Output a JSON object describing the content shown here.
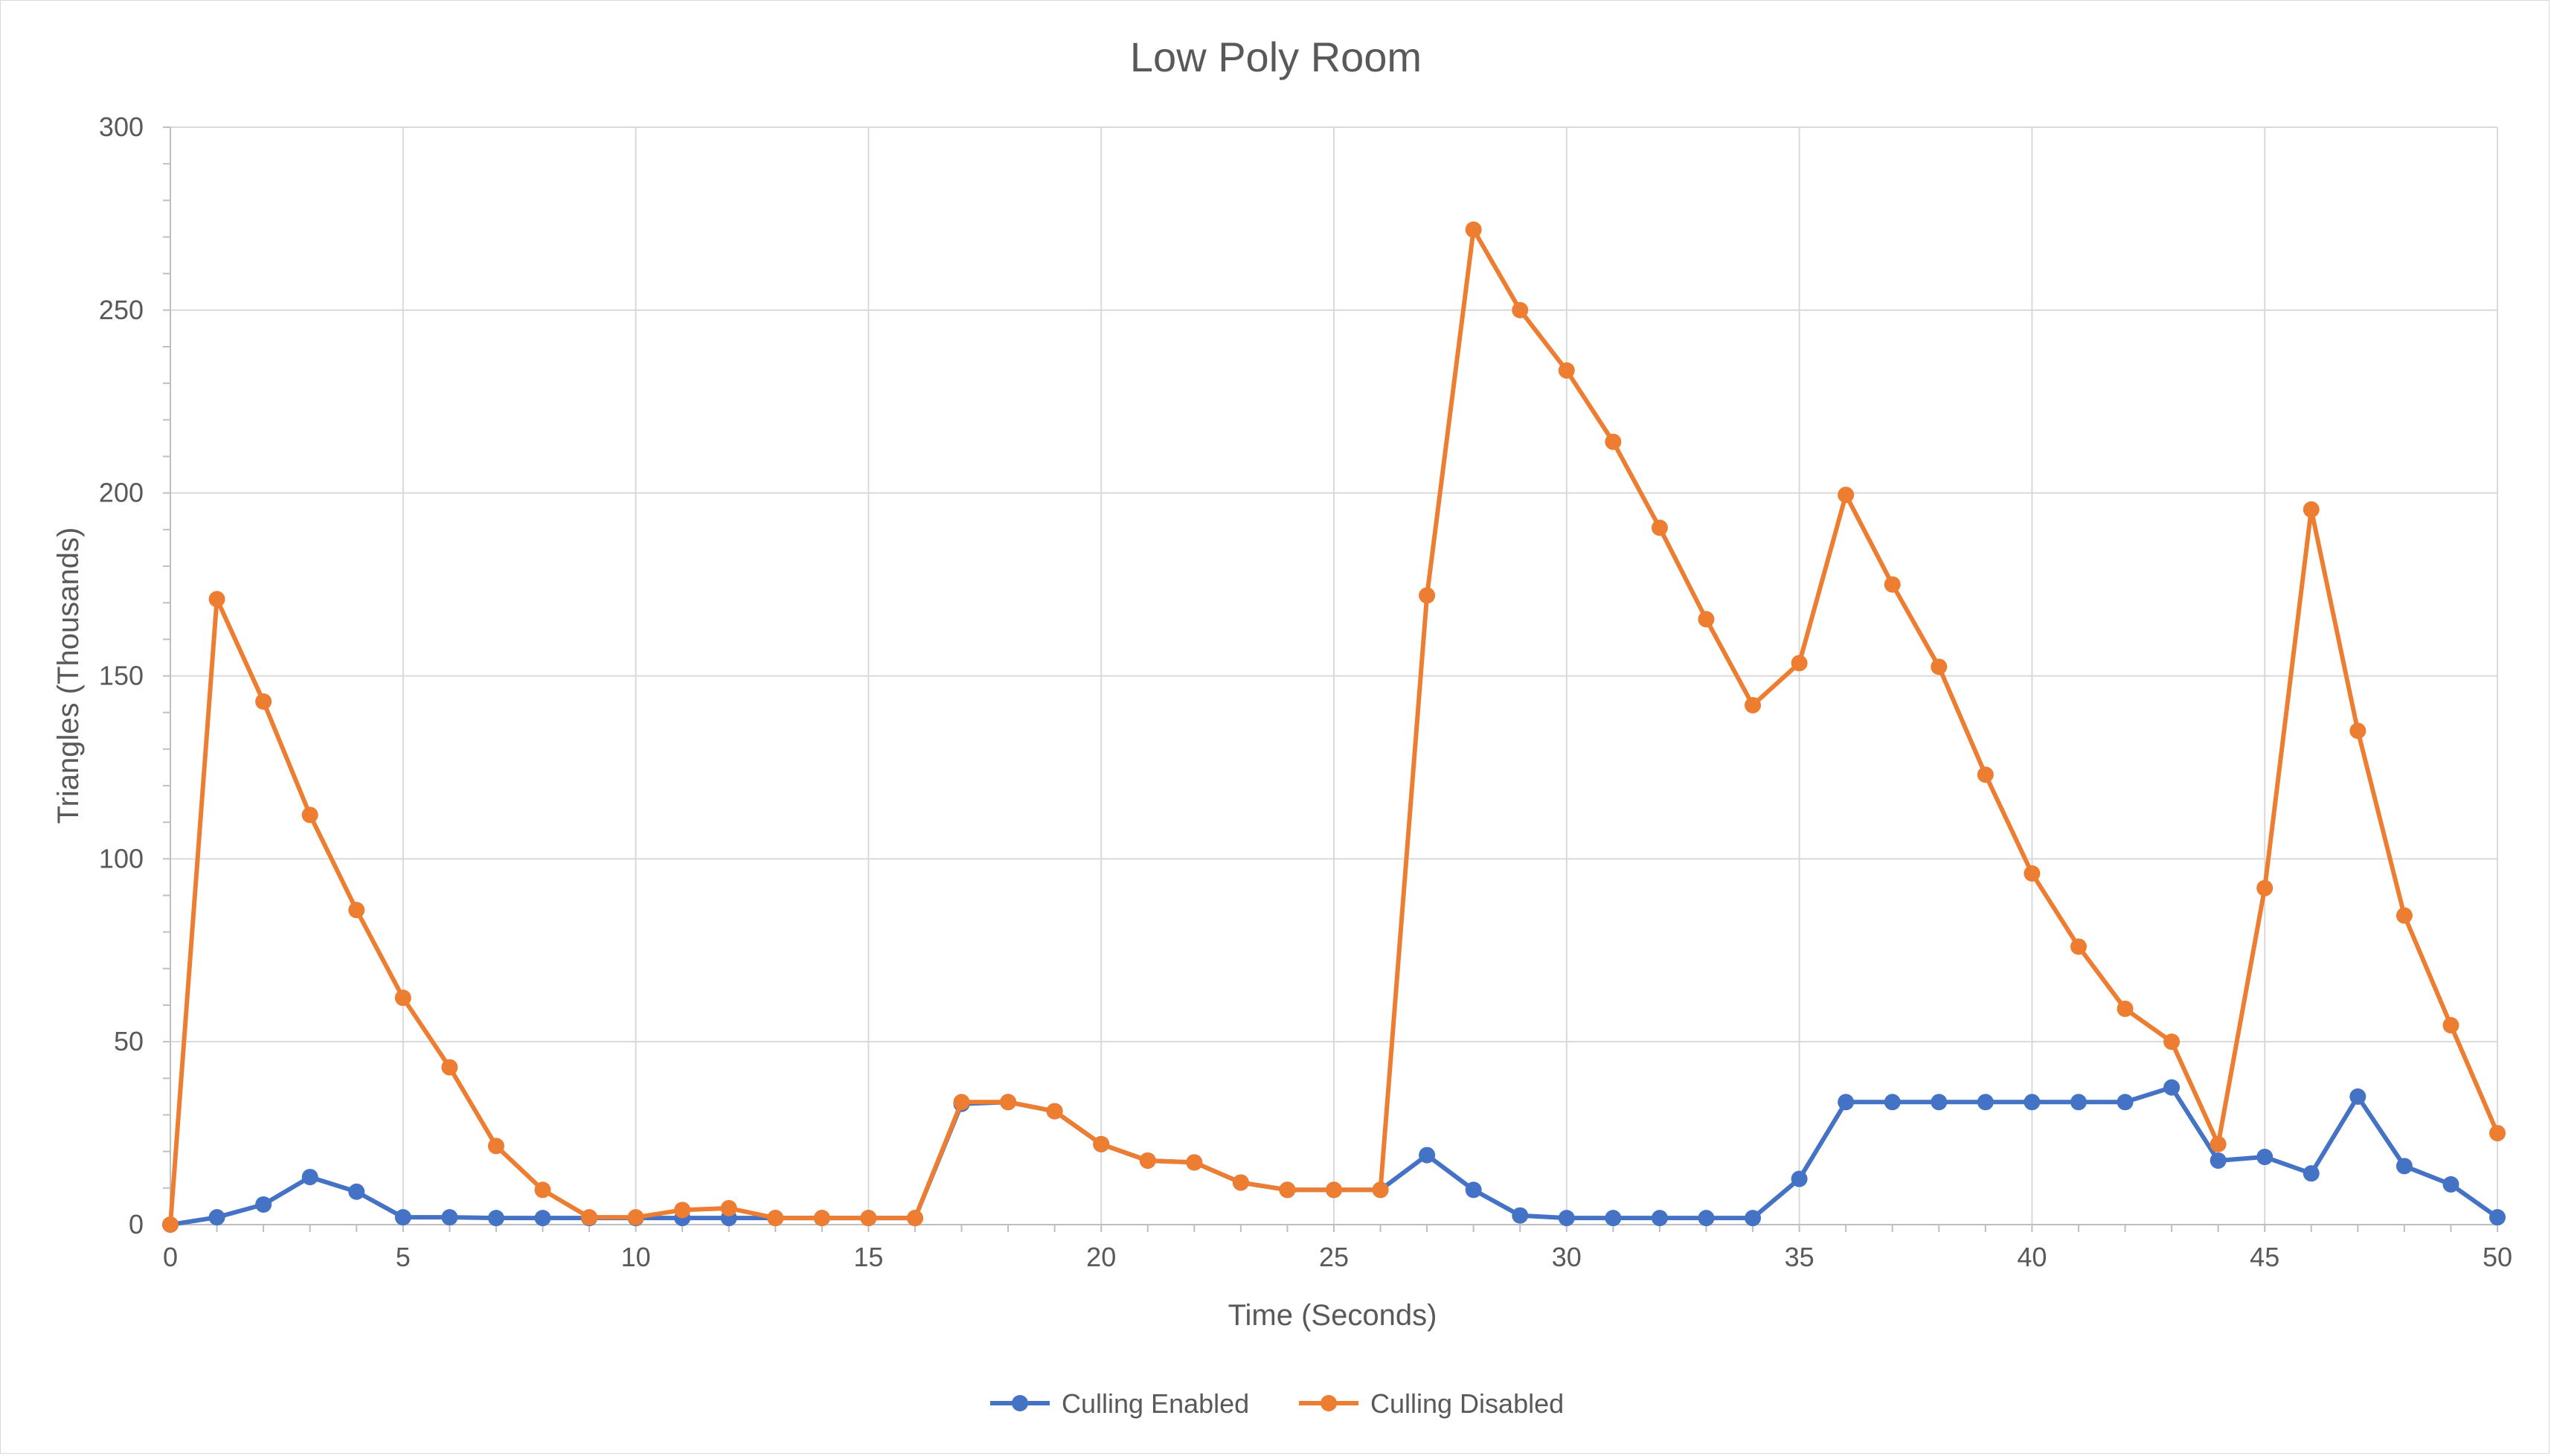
{
  "chart_data": {
    "type": "line",
    "title": "Low Poly Room",
    "xlabel": "Time (Seconds)",
    "ylabel": "Triangles (Thousands)",
    "xlim": [
      0,
      50
    ],
    "ylim": [
      0,
      300
    ],
    "x_ticks": [
      0,
      5,
      10,
      15,
      20,
      25,
      30,
      35,
      40,
      45,
      50
    ],
    "y_ticks": [
      0,
      50,
      100,
      150,
      200,
      250,
      300
    ],
    "grid": true,
    "legend_position": "bottom",
    "x": [
      0,
      1,
      2,
      3,
      4,
      5,
      6,
      7,
      8,
      9,
      10,
      11,
      12,
      13,
      14,
      15,
      16,
      17,
      18,
      19,
      20,
      21,
      22,
      23,
      24,
      25,
      26,
      27,
      28,
      29,
      30,
      31,
      32,
      33,
      34,
      35,
      36,
      37,
      38,
      39,
      40,
      41,
      42,
      43,
      44,
      45,
      46,
      47,
      48,
      49,
      50
    ],
    "series": [
      {
        "name": "Culling Enabled",
        "color": "#4472c4",
        "values": [
          0,
          2,
          5.5,
          13,
          9,
          2,
          2,
          1.8,
          1.8,
          1.8,
          1.8,
          1.8,
          1.8,
          1.8,
          1.8,
          1.8,
          1.8,
          33,
          33.5,
          31,
          22,
          17.5,
          17,
          11.5,
          9.5,
          9.5,
          9.5,
          19,
          9.5,
          2.5,
          1.8,
          1.8,
          1.8,
          1.8,
          1.8,
          12.5,
          33.5,
          33.5,
          33.5,
          33.5,
          33.5,
          33.5,
          33.5,
          37.5,
          17.5,
          18.5,
          14,
          35,
          16,
          11,
          2
        ]
      },
      {
        "name": "Culling Disabled",
        "color": "#ed7d31",
        "values": [
          0,
          171,
          143,
          112,
          86,
          62,
          43,
          21.5,
          9.5,
          2,
          2,
          4,
          4.5,
          1.8,
          1.8,
          1.8,
          1.8,
          33.5,
          33.5,
          31,
          22,
          17.5,
          17,
          11.5,
          9.5,
          9.5,
          9.5,
          172,
          272,
          250,
          233.5,
          214,
          190.5,
          165.5,
          142,
          153.5,
          199.5,
          175,
          152.5,
          123,
          96,
          76,
          59,
          50,
          22,
          92,
          195.5,
          135,
          84.5,
          54.5,
          25
        ]
      }
    ]
  }
}
